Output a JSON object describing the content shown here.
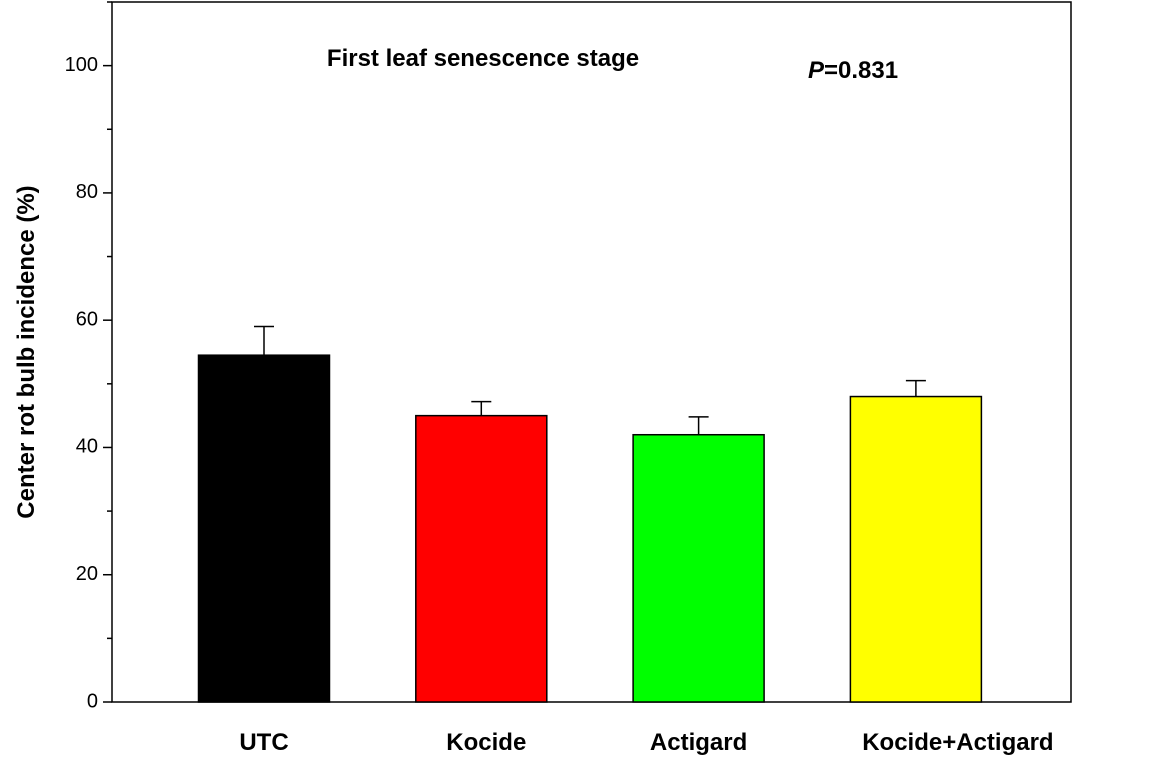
{
  "chart_data": {
    "type": "bar",
    "title": "First leaf senescence stage",
    "p_annotation": {
      "italic": "P",
      "text": "=0.831"
    },
    "y_label": "Center rot bulb incidence (%)",
    "categories": [
      "UTC",
      "Kocide",
      "Actigard",
      "Kocide+Actigard"
    ],
    "values": [
      54.5,
      45,
      42,
      48
    ],
    "errors": [
      4.5,
      2.2,
      2.8,
      2.5
    ],
    "colors": [
      "#000000",
      "#ff0000",
      "#00ff00",
      "#ffff00"
    ],
    "ylim": [
      0,
      110
    ],
    "yticks": [
      0,
      20,
      40,
      60,
      80,
      100
    ],
    "yminor_ticks": [
      10,
      30,
      50,
      70,
      90,
      110
    ],
    "grid": false
  }
}
